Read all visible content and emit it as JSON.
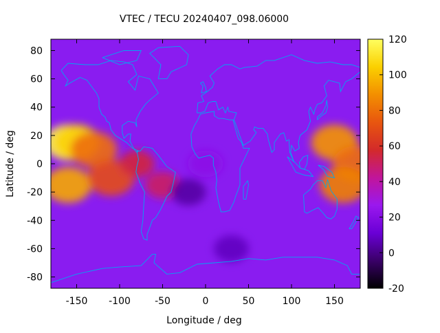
{
  "chart_data": {
    "type": "heatmap",
    "title": "VTEC / TECU 20240407_098.06000",
    "xlabel": "Longitude / deg",
    "ylabel": "Latitude / deg",
    "xlim": [
      -180,
      180
    ],
    "ylim": [
      -88,
      88
    ],
    "x_ticks": [
      -150,
      -100,
      -50,
      0,
      50,
      100,
      150
    ],
    "y_ticks": [
      -80,
      -60,
      -40,
      -20,
      0,
      20,
      40,
      60,
      80
    ],
    "colorbar": {
      "range": [
        -20,
        120
      ],
      "ticks": [
        -20,
        0,
        20,
        40,
        60,
        80,
        100,
        120
      ],
      "palette": [
        "#000000",
        "#3a0068",
        "#6a00d6",
        "#9a18ee",
        "#c1159a",
        "#d32a2a",
        "#e8560f",
        "#f38f00",
        "#fbd000",
        "#ffff60"
      ]
    },
    "grid": false,
    "overlay": "coastlines",
    "overlay_color": "#00a0e8",
    "features": [
      {
        "lon": -160,
        "lat": 15,
        "vtec": 118
      },
      {
        "lon": -150,
        "lat": 15,
        "vtec": 105
      },
      {
        "lon": -130,
        "lat": 10,
        "vtec": 80
      },
      {
        "lon": -160,
        "lat": -15,
        "vtec": 95
      },
      {
        "lon": -110,
        "lat": -10,
        "vtec": 70
      },
      {
        "lon": -80,
        "lat": 0,
        "vtec": 55
      },
      {
        "lon": -50,
        "lat": -15,
        "vtec": 50
      },
      {
        "lon": 150,
        "lat": 15,
        "vtec": 90
      },
      {
        "lon": 175,
        "lat": 0,
        "vtec": 80
      },
      {
        "lon": 160,
        "lat": -15,
        "vtec": 85
      },
      {
        "lon": -20,
        "lat": -20,
        "vtec": 4
      },
      {
        "lon": 30,
        "lat": -60,
        "vtec": 8
      },
      {
        "lon": 0,
        "lat": 0,
        "vtec": 22
      }
    ]
  }
}
